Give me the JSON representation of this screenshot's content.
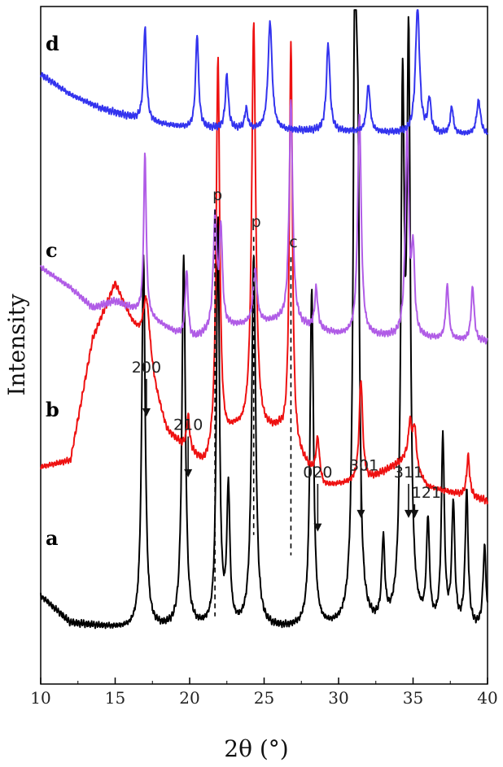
{
  "chart_data": {
    "type": "line",
    "xlabel": "2θ (°)",
    "ylabel": "Intensity",
    "xlim": [
      10,
      40
    ],
    "x_ticks": [
      "10",
      "15",
      "20",
      "25",
      "30",
      "35",
      "40"
    ],
    "y_ticks_visible": false,
    "grid": false,
    "series": [
      {
        "name": "a",
        "color": "#000000",
        "baseline": 0.08,
        "background": [
          [
            10,
            0.05
          ],
          [
            12,
            0.01
          ],
          [
            16,
            0.0
          ],
          [
            40,
            0.0
          ]
        ],
        "peaks": [
          [
            16.9,
            0.55,
            0.14
          ],
          [
            19.6,
            0.55,
            0.14
          ],
          [
            21.9,
            0.6,
            0.12
          ],
          [
            22.6,
            0.2,
            0.12
          ],
          [
            24.3,
            0.55,
            0.16
          ],
          [
            28.2,
            0.5,
            0.14
          ],
          [
            31.1,
            0.92,
            0.14
          ],
          [
            31.3,
            0.5,
            0.12
          ],
          [
            33.0,
            0.12,
            0.12
          ],
          [
            34.3,
            0.75,
            0.14
          ],
          [
            34.7,
            0.82,
            0.14
          ],
          [
            36.0,
            0.15,
            0.12
          ],
          [
            37.0,
            0.28,
            0.12
          ],
          [
            37.7,
            0.18,
            0.12
          ],
          [
            38.6,
            0.2,
            0.12
          ],
          [
            39.8,
            0.12,
            0.12
          ]
        ]
      },
      {
        "name": "b",
        "color": "#ee1111",
        "baseline": 0.27,
        "background": [
          [
            10,
            0.05
          ],
          [
            12,
            0.06
          ],
          [
            13.5,
            0.24
          ],
          [
            15,
            0.32
          ],
          [
            16.5,
            0.24
          ],
          [
            18.5,
            0.1
          ],
          [
            21,
            0.05
          ],
          [
            23,
            0.1
          ],
          [
            26,
            0.1
          ],
          [
            29,
            0.02
          ],
          [
            32,
            0.03
          ],
          [
            34.5,
            0.06
          ],
          [
            36,
            0.02
          ],
          [
            40,
            0.0
          ]
        ],
        "peaks": [
          [
            17.1,
            0.1,
            0.3
          ],
          [
            19.9,
            0.05,
            0.12
          ],
          [
            21.9,
            0.58,
            0.14
          ],
          [
            24.3,
            0.6,
            0.16
          ],
          [
            26.8,
            0.6,
            0.12
          ],
          [
            28.6,
            0.06,
            0.14
          ],
          [
            31.5,
            0.15,
            0.14
          ],
          [
            34.8,
            0.06,
            0.14
          ],
          [
            35.1,
            0.06,
            0.14
          ],
          [
            38.7,
            0.06,
            0.12
          ]
        ]
      },
      {
        "name": "c",
        "color": "#b05ce6",
        "baseline": 0.505,
        "background": [
          [
            10,
            0.11
          ],
          [
            12,
            0.08
          ],
          [
            13.5,
            0.05
          ],
          [
            15,
            0.06
          ],
          [
            17,
            0.04
          ],
          [
            20,
            0.0
          ],
          [
            22,
            0.02
          ],
          [
            26,
            0.03
          ],
          [
            30,
            0.01
          ],
          [
            40,
            0.0
          ]
        ],
        "peaks": [
          [
            17.0,
            0.24,
            0.1
          ],
          [
            19.8,
            0.1,
            0.12
          ],
          [
            21.7,
            0.16,
            0.14
          ],
          [
            22.1,
            0.14,
            0.12
          ],
          [
            24.4,
            0.08,
            0.16
          ],
          [
            26.8,
            0.33,
            0.14
          ],
          [
            28.5,
            0.06,
            0.12
          ],
          [
            31.4,
            0.33,
            0.14
          ],
          [
            34.6,
            0.3,
            0.14
          ],
          [
            35.0,
            0.12,
            0.12
          ],
          [
            37.3,
            0.08,
            0.12
          ],
          [
            39.0,
            0.08,
            0.12
          ]
        ]
      },
      {
        "name": "d",
        "color": "#3333ee",
        "baseline": 0.81,
        "background": [
          [
            10,
            0.09
          ],
          [
            12,
            0.06
          ],
          [
            14,
            0.04
          ],
          [
            17,
            0.02
          ],
          [
            20,
            0.01
          ],
          [
            40,
            0.0
          ]
        ],
        "peaks": [
          [
            17.0,
            0.14,
            0.12
          ],
          [
            20.5,
            0.14,
            0.12
          ],
          [
            22.5,
            0.08,
            0.12
          ],
          [
            23.8,
            0.03,
            0.12
          ],
          [
            25.4,
            0.16,
            0.16
          ],
          [
            29.3,
            0.13,
            0.14
          ],
          [
            32.0,
            0.07,
            0.14
          ],
          [
            35.3,
            0.19,
            0.16
          ],
          [
            36.1,
            0.05,
            0.12
          ],
          [
            37.6,
            0.04,
            0.12
          ],
          [
            39.4,
            0.05,
            0.16
          ]
        ]
      }
    ],
    "annotations": [
      {
        "text": "200",
        "x": 17.1,
        "text_x": 17.1,
        "text_level": 0.46,
        "arrow_to": 0.395
      },
      {
        "text": "210",
        "x": 19.9,
        "text_x": 19.9,
        "text_level": 0.375,
        "arrow_to": 0.305
      },
      {
        "text": "020",
        "x": 28.6,
        "text_x": 28.6,
        "text_level": 0.305,
        "arrow_to": 0.225
      },
      {
        "text": "301",
        "x": 31.5,
        "text_x": 31.7,
        "text_level": 0.315,
        "arrow_to": 0.245
      },
      {
        "text": "311",
        "x": 34.7,
        "text_x": 34.7,
        "text_level": 0.305,
        "arrow_to": 0.245
      },
      {
        "text": "121",
        "x": 35.1,
        "text_x": 35.9,
        "text_level": 0.275,
        "arrow_to": 0.245
      }
    ],
    "phase_marks": [
      {
        "text": "p",
        "x": 21.7,
        "from": 0.1,
        "to": 0.7
      },
      {
        "text": "p",
        "x": 24.3,
        "from": 0.22,
        "to": 0.66
      },
      {
        "text": "c",
        "x": 26.8,
        "from": 0.19,
        "to": 0.63
      }
    ]
  }
}
